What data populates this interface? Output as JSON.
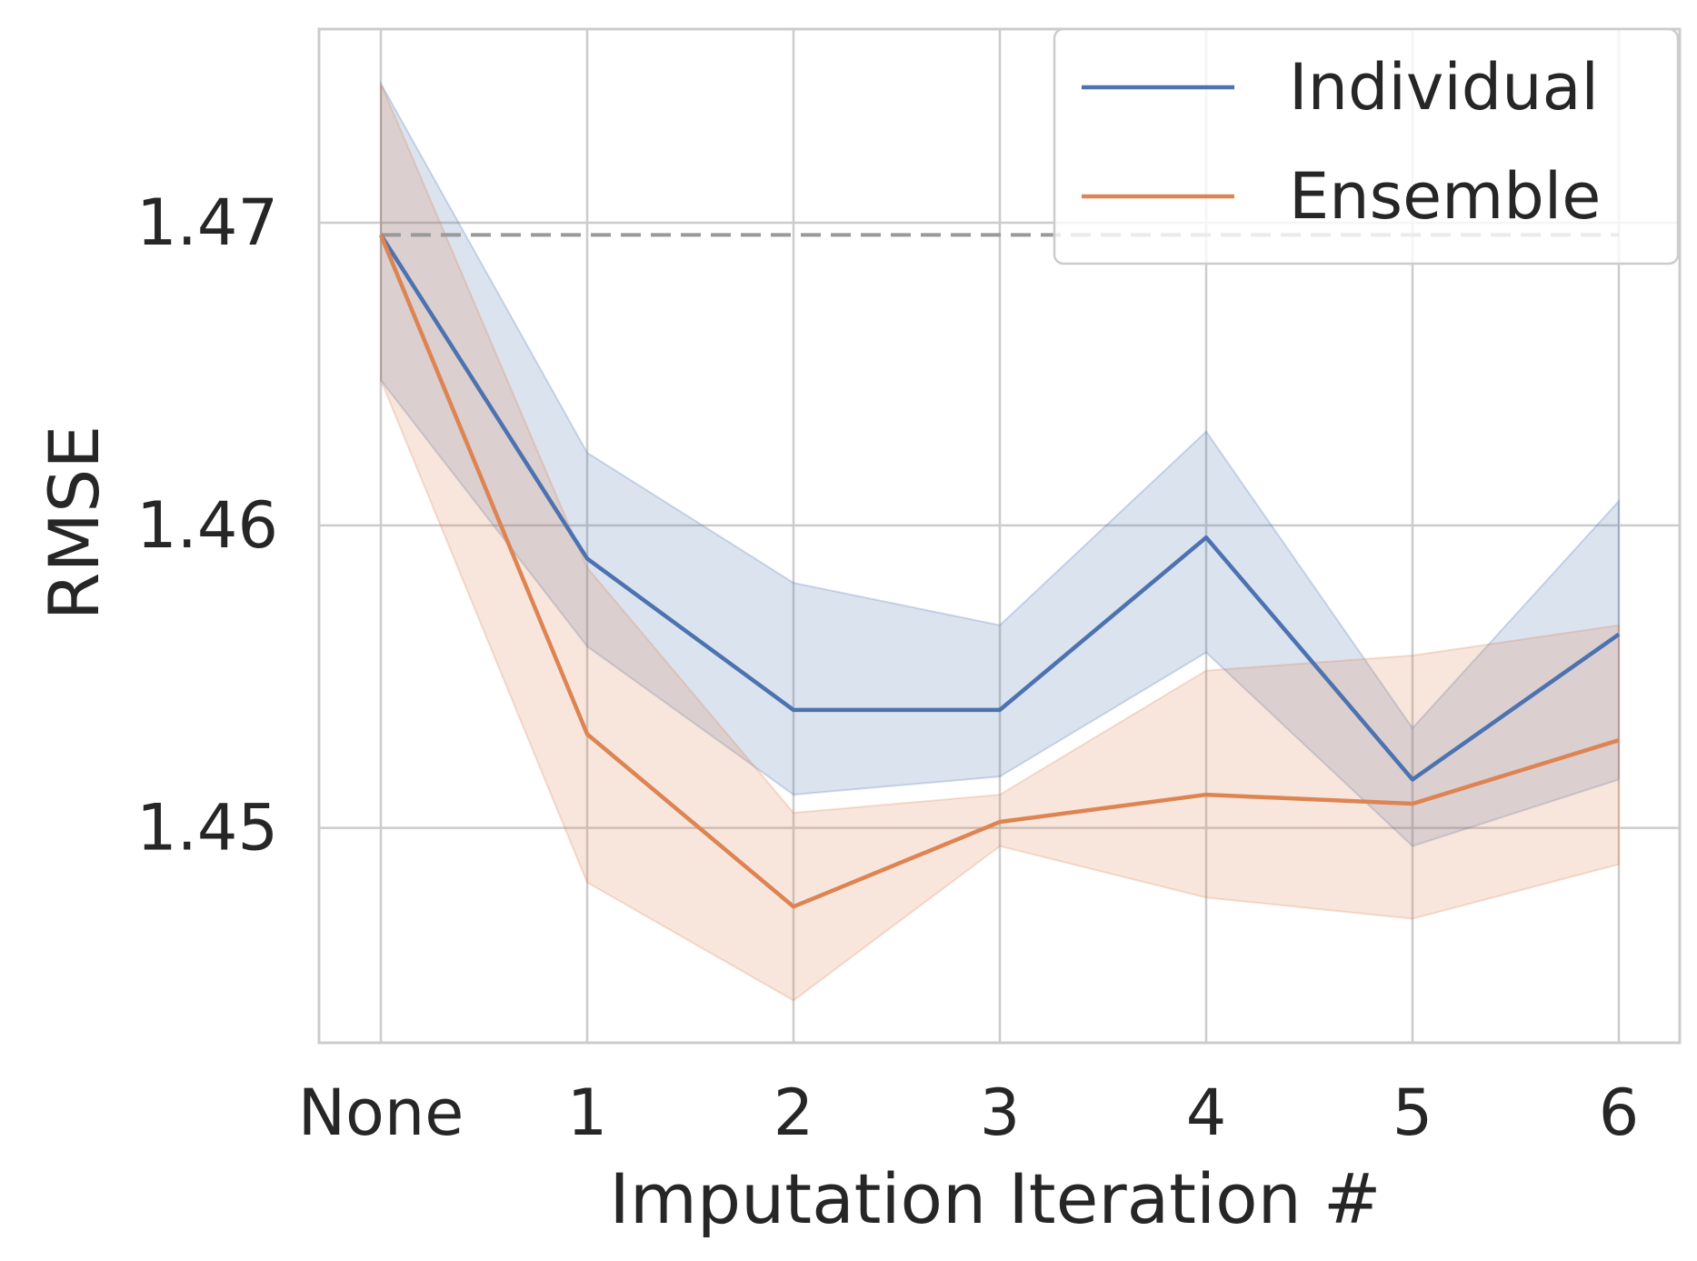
{
  "chart_data": {
    "type": "line",
    "xlabel": "Imputation Iteration #",
    "ylabel": "RMSE",
    "categories": [
      "None",
      "1",
      "2",
      "3",
      "4",
      "5",
      "6"
    ],
    "ylim": [
      1.4429,
      1.4764
    ],
    "yticks": [
      1.45,
      1.46,
      1.47
    ],
    "ytick_labels": [
      "1.45",
      "1.46",
      "1.47"
    ],
    "grid": true,
    "legend_position": "top-right",
    "baseline": {
      "y": 1.4696,
      "style": "dashed",
      "color": "#999999"
    },
    "series": [
      {
        "name": "Individual",
        "color": "#4c72b0",
        "values": [
          1.4696,
          1.4589,
          1.4539,
          1.4539,
          1.4596,
          1.4516,
          1.4564
        ],
        "upper": [
          1.4746,
          1.4624,
          1.4581,
          1.4567,
          1.4631,
          1.4533,
          1.4608
        ],
        "lower": [
          1.4648,
          1.456,
          1.4511,
          1.4517,
          1.4558,
          1.4494,
          1.4516
        ]
      },
      {
        "name": "Ensemble",
        "color": "#dd8452",
        "values": [
          1.4696,
          1.4531,
          1.4474,
          1.4502,
          1.4511,
          1.4508,
          1.4529
        ],
        "upper": [
          1.4746,
          1.4586,
          1.4505,
          1.4511,
          1.4552,
          1.4557,
          1.4567
        ],
        "lower": [
          1.4648,
          1.4482,
          1.4443,
          1.4494,
          1.4477,
          1.447,
          1.4488
        ]
      }
    ]
  }
}
